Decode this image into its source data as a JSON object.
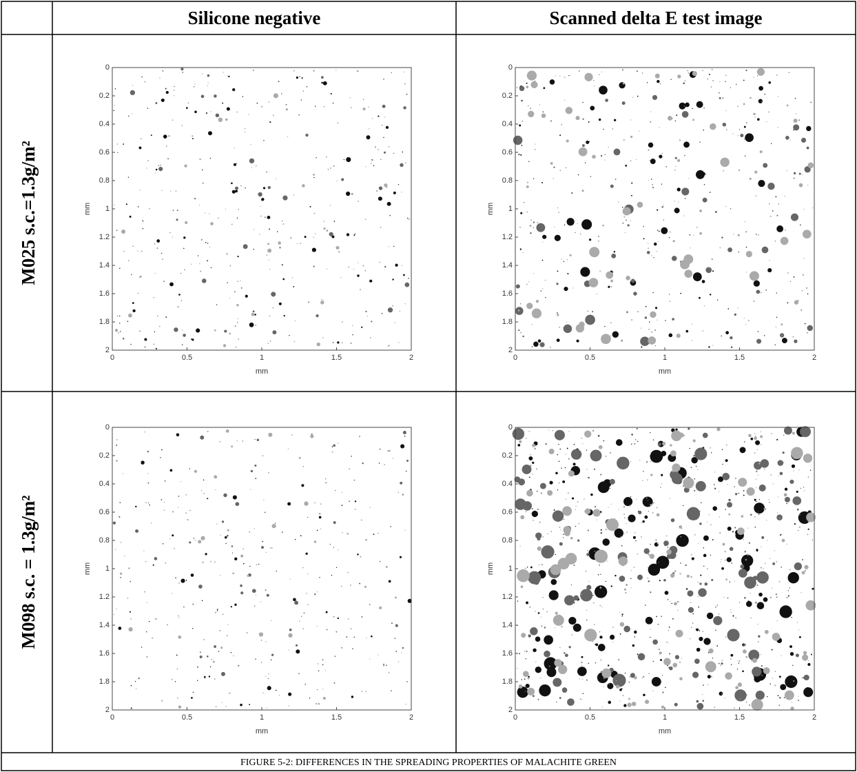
{
  "table": {
    "header": [
      "Silicone negative",
      "Scanned delta E test image"
    ],
    "rows": [
      {
        "label": "M025 s.c.=1.3g/m²"
      },
      {
        "label": "M098 s.c. = 1.3g/m²"
      }
    ],
    "caption": "FIGURE 5-2: DIFFERENCES IN THE SPREADING PROPERTIES OF MALACHITE GREEN"
  },
  "plot": {
    "xlabel": "mm",
    "ylabel": "mm",
    "xlim": [
      0,
      2
    ],
    "ylim": [
      0,
      2
    ],
    "xticks": [
      0,
      0.5,
      1,
      1.5,
      2
    ],
    "yticks": [
      0,
      0.2,
      0.4,
      0.6,
      0.8,
      1,
      1.2,
      1.4,
      1.6,
      1.8,
      2
    ]
  }
}
